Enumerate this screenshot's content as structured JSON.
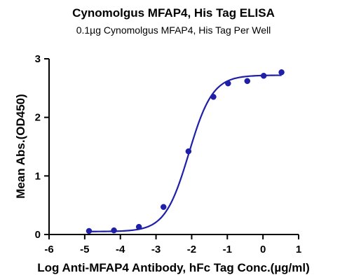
{
  "chart_data": {
    "type": "scatter",
    "title": "Cynomolgus MFAP4, His Tag ELISA",
    "subtitle": "0.1µg Cynomolgus MFAP4, His Tag Per Well",
    "xlabel": "Log Anti-MFAP4 Antibody, hFc Tag Conc.(µg/ml)",
    "ylabel": "Mean Abs.(OD450)",
    "xlim": [
      -6,
      1
    ],
    "ylim": [
      0,
      3
    ],
    "x_ticks": [
      -6,
      -5,
      -4,
      -3,
      -2,
      -1,
      0,
      1
    ],
    "y_ticks": [
      0,
      1,
      2,
      3
    ],
    "x_tick_labels": [
      "-6",
      "-5",
      "-4",
      "-3",
      "-2",
      "-1",
      "0",
      "1"
    ],
    "y_tick_labels": [
      "0",
      "1",
      "2",
      "3"
    ],
    "grid": false,
    "legend": "none",
    "series": [
      {
        "x": [
          -4.88,
          -4.18,
          -3.48,
          -2.79,
          -2.09,
          -1.39,
          -0.98,
          -0.44,
          0.02,
          0.52
        ],
        "values": [
          0.06,
          0.07,
          0.13,
          0.47,
          1.42,
          2.35,
          2.58,
          2.62,
          2.71,
          2.77
        ],
        "marker": "circle",
        "fit": "sigmoidal 4PL"
      }
    ],
    "fit_curve": {
      "bottom": 0.05,
      "top": 2.72,
      "logEC50": -2.08,
      "hill_slope": 1.3
    },
    "color": "#1f1fa8"
  }
}
